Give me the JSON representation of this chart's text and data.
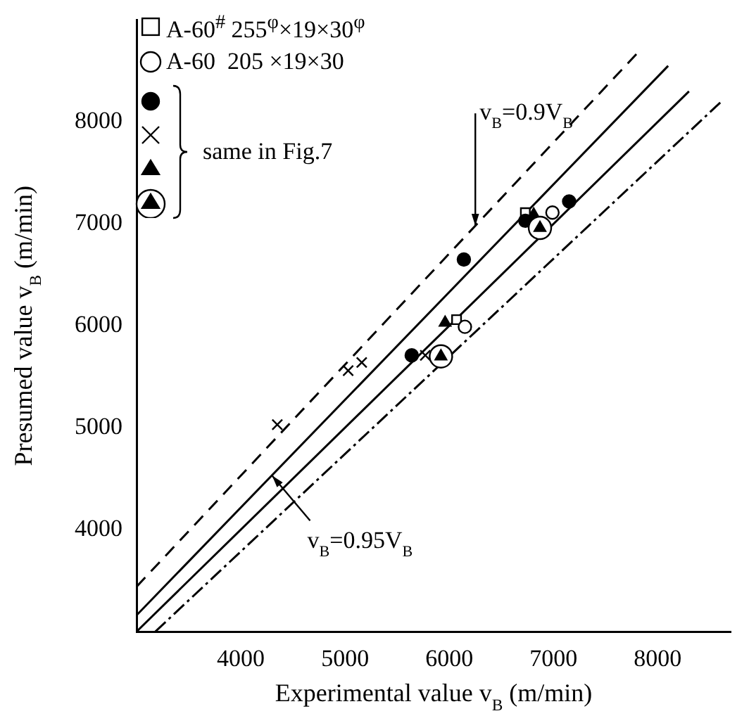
{
  "chart_data": {
    "type": "scatter",
    "xlabel": "Experimental value v$_{B}$ (m/min)",
    "ylabel": "Presumed value v$_{B}$ (m/min)",
    "xlim": [
      3000,
      8700
    ],
    "ylim": [
      3000,
      9000
    ],
    "xticks": [
      4000,
      5000,
      6000,
      7000,
      8000
    ],
    "yticks": [
      4000,
      5000,
      6000,
      7000,
      8000
    ],
    "legend": "top left",
    "annotations": [
      {
        "text": "v$_{B}$=0.9V$_{B}$",
        "x": 6250,
        "y": 6980
      },
      {
        "text": "v$_{B}$=0.95V$_{B}$",
        "x": 4300,
        "y": 4530
      },
      "same in Fig.7"
    ],
    "series": [
      {
        "name": "A-60$^{#}$ 255$^{φ}$×19×30$^{φ}$",
        "marker": "square",
        "color": "#ffffff",
        "x": [
          6730,
          6070
        ],
        "values": [
          7110,
          6060
        ]
      },
      {
        "name": "A-60  205 ×19×30",
        "marker": "circle",
        "color": "#ffffff",
        "x": [
          6990,
          6150
        ],
        "values": [
          7110,
          5990
        ]
      },
      {
        "marker": "circle",
        "color": "#000000",
        "x": [
          7150,
          6140,
          6730,
          5640
        ],
        "values": [
          7220,
          6650,
          7030,
          5710
        ]
      },
      {
        "marker": "cross",
        "color": "#000000",
        "x": [
          5770,
          5030,
          5160,
          4350
        ],
        "values": [
          5710,
          5560,
          5640,
          5030
        ]
      },
      {
        "marker": "triangle",
        "color": "#000000",
        "x": [
          6810,
          5960
        ],
        "values": [
          7090,
          6030
        ]
      },
      {
        "type": "bubble",
        "color": "#ffffff",
        "x": [
          6870,
          5920
        ],
        "values": [
          6960,
          5700
        ],
        "sizes": [
          1,
          1
        ]
      },
      {
        "marker": "triangle",
        "color": "#000000",
        "x": [
          6870,
          5920
        ],
        "values": [
          6960,
          5700
        ]
      },
      {
        "type": "line",
        "line_style": "dashed",
        "color": "#000000",
        "x": [
          3000,
          7800
        ],
        "values": [
          3440,
          8670
        ]
      },
      {
        "type": "line",
        "line_style": "solid",
        "color": "#000000",
        "x": [
          3000,
          8100
        ],
        "values": [
          3160,
          8550
        ]
      },
      {
        "type": "line",
        "line_style": "solid",
        "color": "#000000",
        "x": [
          3000,
          8300
        ],
        "values": [
          3000,
          8300
        ]
      },
      {
        "type": "line",
        "line_style": "dashdot",
        "color": "#000000",
        "x": [
          3180,
          8600
        ],
        "values": [
          3000,
          8190
        ]
      }
    ]
  }
}
